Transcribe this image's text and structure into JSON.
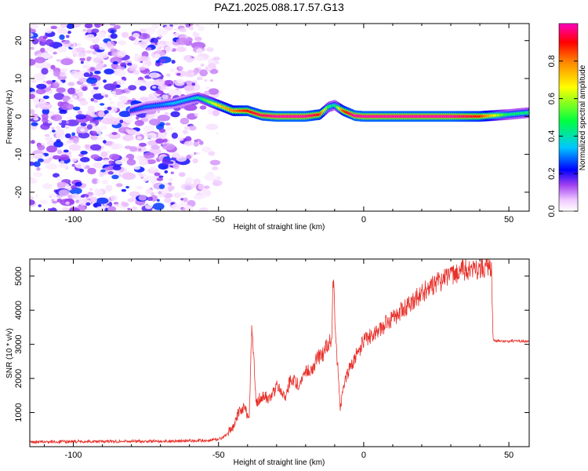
{
  "title": "PAZ1.2025.088.17.57.G13",
  "chart_data": [
    {
      "type": "heatmap",
      "xlabel": "Height of straight line (km)",
      "ylabel": "Frequency (Hz)",
      "xlim": [
        -115,
        57
      ],
      "ylim": [
        -25,
        24.5
      ],
      "xticks": [
        -100,
        -50,
        0,
        50
      ],
      "yticks": [
        -20,
        -10,
        0,
        10,
        20
      ],
      "colorbar": {
        "label": "Normalized spectral amplitude",
        "range": [
          0,
          1
        ],
        "ticks": [
          0.0,
          0.2,
          0.4,
          0.6,
          0.8
        ],
        "tick_labels": [
          "0.0",
          "0.2",
          "0.4",
          "0.6",
          "0.8"
        ],
        "colormap": [
          "#ffffff",
          "#f0c8ff",
          "#a040f0",
          "#0000ff",
          "#00c8ff",
          "#00ff40",
          "#ffff00",
          "#ff8000",
          "#ff0000",
          "#ff00c0"
        ]
      },
      "ridge": {
        "x": [
          -80,
          -75,
          -70,
          -65,
          -60,
          -57,
          -55,
          -50,
          -45,
          -40,
          -35,
          -30,
          -20,
          -15,
          -12,
          -10,
          -7,
          -3,
          0,
          10,
          20,
          30,
          40,
          50,
          57
        ],
        "frequency": [
          1.5,
          2.5,
          3,
          3.5,
          4.5,
          5,
          4.5,
          3,
          1.5,
          1.5,
          0.3,
          0,
          0,
          0.5,
          2.5,
          3,
          1.5,
          0.2,
          0,
          0,
          0,
          0,
          0,
          0.5,
          1
        ],
        "amplitude": [
          0.25,
          0.3,
          0.3,
          0.35,
          0.35,
          0.4,
          0.5,
          0.7,
          0.8,
          0.9,
          0.95,
          1.0,
          1.0,
          0.9,
          0.5,
          0.4,
          0.85,
          1.0,
          1.0,
          1.0,
          1.0,
          1.0,
          0.9,
          0.45,
          0.45
        ]
      },
      "noise_region_x": [
        -115,
        -50
      ]
    },
    {
      "type": "line",
      "xlabel": "Height of straight line (km)",
      "ylabel": "SNR (10 * v/v)",
      "xlim": [
        -115,
        57
      ],
      "ylim": [
        0,
        5500
      ],
      "xticks": [
        -100,
        -50,
        0,
        50
      ],
      "yticks": [
        1000,
        2000,
        3000,
        4000,
        5000
      ],
      "color": "#e8302a",
      "series": [
        {
          "x": [
            -115,
            -100,
            -90,
            -80,
            -70,
            -60,
            -55,
            -50,
            -47,
            -45,
            -43,
            -41,
            -39.5,
            -38.5,
            -37,
            -35,
            -32,
            -30,
            -27,
            -25,
            -22,
            -20,
            -18,
            -16,
            -14,
            -12.5,
            -11,
            -10.5,
            -9.5,
            -8,
            -7,
            -5,
            -3,
            0,
            5,
            10,
            15,
            20,
            25,
            30,
            35,
            40,
            43,
            44,
            44.5,
            45,
            50,
            57
          ],
          "y": [
            130,
            150,
            150,
            160,
            160,
            170,
            180,
            210,
            350,
            600,
            1000,
            1200,
            700,
            3500,
            1300,
            1500,
            1400,
            1800,
            1500,
            2000,
            1800,
            2300,
            2200,
            2600,
            2700,
            3000,
            3200,
            5000,
            3000,
            1100,
            1800,
            2300,
            2600,
            3100,
            3400,
            3800,
            4100,
            4500,
            4800,
            5000,
            5200,
            5250,
            5280,
            5300,
            3200,
            3100,
            3100,
            3100
          ]
        }
      ]
    }
  ]
}
